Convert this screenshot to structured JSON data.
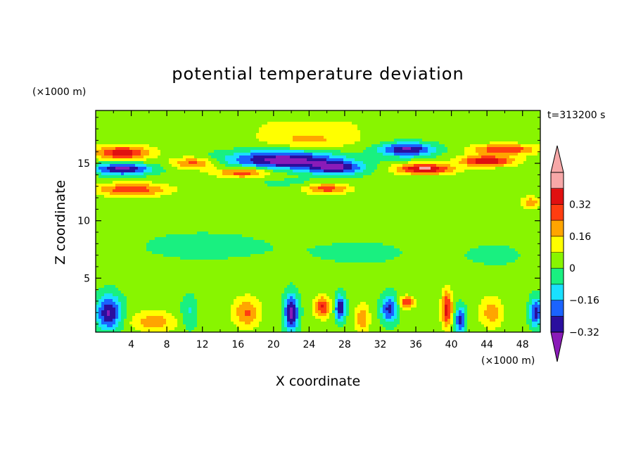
{
  "chart_data": {
    "type": "heatmap",
    "title": "potential temperature deviation",
    "xlabel": "X coordinate",
    "ylabel": "Z coordinate",
    "x_unit": "(×1000 m)",
    "y_unit": "(×1000 m)",
    "time_label": "t=313200 s",
    "xlim": [
      0,
      50
    ],
    "ylim": [
      0.3,
      19.6
    ],
    "x_ticks": [
      "4",
      "8",
      "12",
      "16",
      "20",
      "24",
      "28",
      "32",
      "36",
      "40",
      "44",
      "48"
    ],
    "y_ticks": [
      "5",
      "10",
      "15"
    ],
    "colorbar": {
      "tick_labels": [
        "0.32",
        "0.16",
        "0",
        "−0.16",
        "−0.32"
      ],
      "levels": [
        -0.4,
        -0.32,
        -0.24,
        -0.16,
        -0.08,
        0,
        0.08,
        0.16,
        0.24,
        0.32,
        0.4
      ],
      "colors": [
        "#8a1bb8",
        "#2a0f9e",
        "#1a63ff",
        "#19e0ff",
        "#19f080",
        "#88f500",
        "#ffff00",
        "#ffa500",
        "#ff3d10",
        "#e01010",
        "#f7a8a8",
        "#f7a8a8"
      ]
    },
    "features": [
      {
        "x": 3,
        "z": 15.9,
        "v": 0.34,
        "rx": 3.2,
        "rz": 0.6
      },
      {
        "x": 3,
        "z": 14.5,
        "v": -0.38,
        "rx": 3.2,
        "rz": 0.5
      },
      {
        "x": 4,
        "z": 12.7,
        "v": 0.28,
        "rx": 4,
        "rz": 0.55
      },
      {
        "x": 11,
        "z": 15,
        "v": 0.25,
        "rx": 2.4,
        "rz": 0.5
      },
      {
        "x": 16.5,
        "z": 14.2,
        "v": 0.27,
        "rx": 3,
        "rz": 0.45
      },
      {
        "x": 21,
        "z": 15.3,
        "v": -0.4,
        "rx": 6,
        "rz": 0.8
      },
      {
        "x": 27,
        "z": 14.6,
        "v": -0.33,
        "rx": 3.2,
        "rz": 0.6
      },
      {
        "x": 26,
        "z": 12.8,
        "v": 0.26,
        "rx": 2.5,
        "rz": 0.45
      },
      {
        "x": 24,
        "z": 17,
        "v": 0.14,
        "rx": 5,
        "rz": 0.8
      },
      {
        "x": 35,
        "z": 16.2,
        "v": -0.37,
        "rx": 3,
        "rz": 0.6
      },
      {
        "x": 37,
        "z": 14.5,
        "v": 0.4,
        "rx": 3.2,
        "rz": 0.45
      },
      {
        "x": 44,
        "z": 15.2,
        "v": 0.37,
        "rx": 3,
        "rz": 0.45
      },
      {
        "x": 46,
        "z": 16.2,
        "v": 0.3,
        "rx": 3.5,
        "rz": 0.45
      },
      {
        "x": 49,
        "z": 11.6,
        "v": 0.18,
        "rx": 1.2,
        "rz": 0.5
      },
      {
        "x": 1.5,
        "z": 2,
        "v": -0.36,
        "rx": 1.4,
        "rz": 1.5
      },
      {
        "x": 6.5,
        "z": 1.2,
        "v": 0.18,
        "rx": 2.5,
        "rz": 0.9
      },
      {
        "x": 10.5,
        "z": 2,
        "v": -0.12,
        "rx": 0.9,
        "rz": 1.5
      },
      {
        "x": 17,
        "z": 2,
        "v": 0.22,
        "rx": 1.5,
        "rz": 1.3
      },
      {
        "x": 22,
        "z": 2,
        "v": -0.38,
        "rx": 0.8,
        "rz": 1.6
      },
      {
        "x": 25.5,
        "z": 2.5,
        "v": 0.3,
        "rx": 0.9,
        "rz": 0.9
      },
      {
        "x": 27.5,
        "z": 2.4,
        "v": -0.36,
        "rx": 0.6,
        "rz": 1.1
      },
      {
        "x": 30,
        "z": 1.5,
        "v": 0.2,
        "rx": 0.8,
        "rz": 1.2
      },
      {
        "x": 33,
        "z": 2.3,
        "v": -0.3,
        "rx": 0.9,
        "rz": 1.2
      },
      {
        "x": 35,
        "z": 2.9,
        "v": 0.3,
        "rx": 0.8,
        "rz": 0.5
      },
      {
        "x": 39.5,
        "z": 2.3,
        "v": 0.33,
        "rx": 0.6,
        "rz": 1.6
      },
      {
        "x": 41,
        "z": 1.3,
        "v": -0.3,
        "rx": 0.6,
        "rz": 1.2
      },
      {
        "x": 44.5,
        "z": 2,
        "v": 0.18,
        "rx": 1.3,
        "rz": 1.3
      },
      {
        "x": 49.5,
        "z": 2,
        "v": -0.3,
        "rx": 0.7,
        "rz": 1.3
      },
      {
        "x": 12,
        "z": 7.8,
        "v": -0.05,
        "rx": 9,
        "rz": 1.6
      },
      {
        "x": 30,
        "z": 7.2,
        "v": -0.04,
        "rx": 8,
        "rz": 1.6
      },
      {
        "x": 45,
        "z": 7,
        "v": -0.04,
        "rx": 5,
        "rz": 1.5
      },
      {
        "x": 24,
        "z": 18.5,
        "v": 0.05,
        "rx": 26,
        "rz": 1.3
      },
      {
        "x": 22,
        "z": 13.3,
        "v": -0.05,
        "rx": 5,
        "rz": 0.4
      }
    ]
  }
}
